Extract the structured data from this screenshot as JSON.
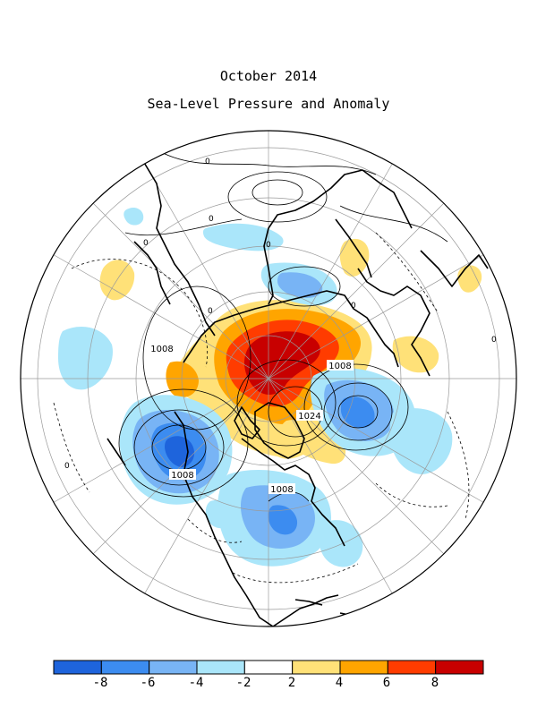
{
  "title": "October 2014",
  "subtitle": "Sea-Level Pressure and Anomaly",
  "colors": {
    "land_outline": "#000000",
    "graticule": "#9a9a9a",
    "contour": "#000000",
    "legend_bins": [
      "#1e64dc",
      "#3c8cf0",
      "#78b4f5",
      "#aae6fa",
      "#ffffff",
      "#ffe178",
      "#ffa500",
      "#ff3c00",
      "#c80000"
    ]
  },
  "map": {
    "projection": "north-polar-stereographic",
    "field": "sea-level-pressure",
    "contour_interval_hpa": 8,
    "contour_labels": [
      {
        "id": "c1",
        "text": "1008"
      },
      {
        "id": "c2",
        "text": "1008"
      },
      {
        "id": "c3",
        "text": "1024"
      },
      {
        "id": "c4",
        "text": "1008"
      },
      {
        "id": "c5",
        "text": "1008"
      }
    ],
    "zero_labels": [
      "0",
      "0",
      "0",
      "0",
      "0",
      "0",
      "0",
      "0"
    ]
  },
  "legend": {
    "ticks": [
      "-8",
      "-6",
      "-4",
      "-2",
      "2",
      "4",
      "6",
      "8"
    ],
    "units": ""
  }
}
